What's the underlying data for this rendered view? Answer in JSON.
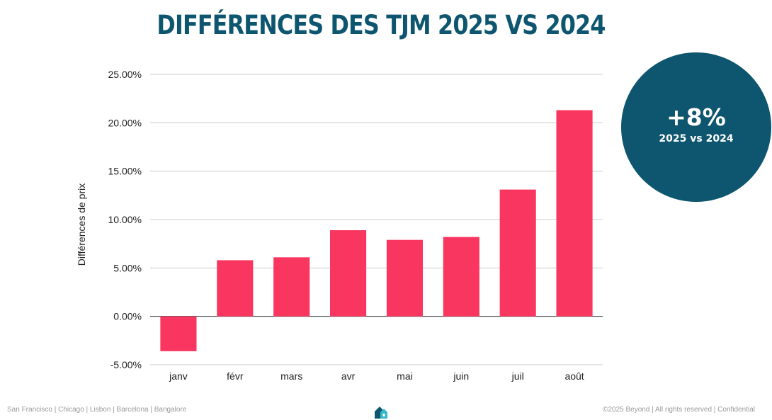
{
  "header": {
    "title": "Différences des TJM 2025 vs 2024"
  },
  "callout": {
    "value": "+8%",
    "subtitle": "2025 vs 2024"
  },
  "chart_data": {
    "type": "bar",
    "title": "Différences des TJM 2025 vs 2024",
    "xlabel": "",
    "ylabel": "Différences de prix",
    "categories": [
      "janv",
      "févr",
      "mars",
      "avr",
      "mai",
      "juin",
      "juil",
      "août"
    ],
    "values": [
      -3.6,
      5.8,
      6.1,
      8.9,
      7.9,
      8.2,
      13.1,
      21.3
    ],
    "ylim": [
      -5,
      25
    ],
    "yticks": [
      -5,
      0,
      5,
      10,
      15,
      20,
      25
    ],
    "ytick_labels": [
      "-5.00%",
      "0.00%",
      "5.00%",
      "10.00%",
      "15.00%",
      "20.00%",
      "25.00%"
    ],
    "grid": true,
    "bar_color": "#f9365f"
  },
  "footer": {
    "locations": "San Francisco | Chicago | Lisbon | Barcelona | Bangalore",
    "copyright": "©2025 Beyond | All rights reserved | Confidential"
  },
  "logo": {
    "icon": "house-icon",
    "color_primary": "#0e566f",
    "color_secondary": "#35b8c9"
  }
}
